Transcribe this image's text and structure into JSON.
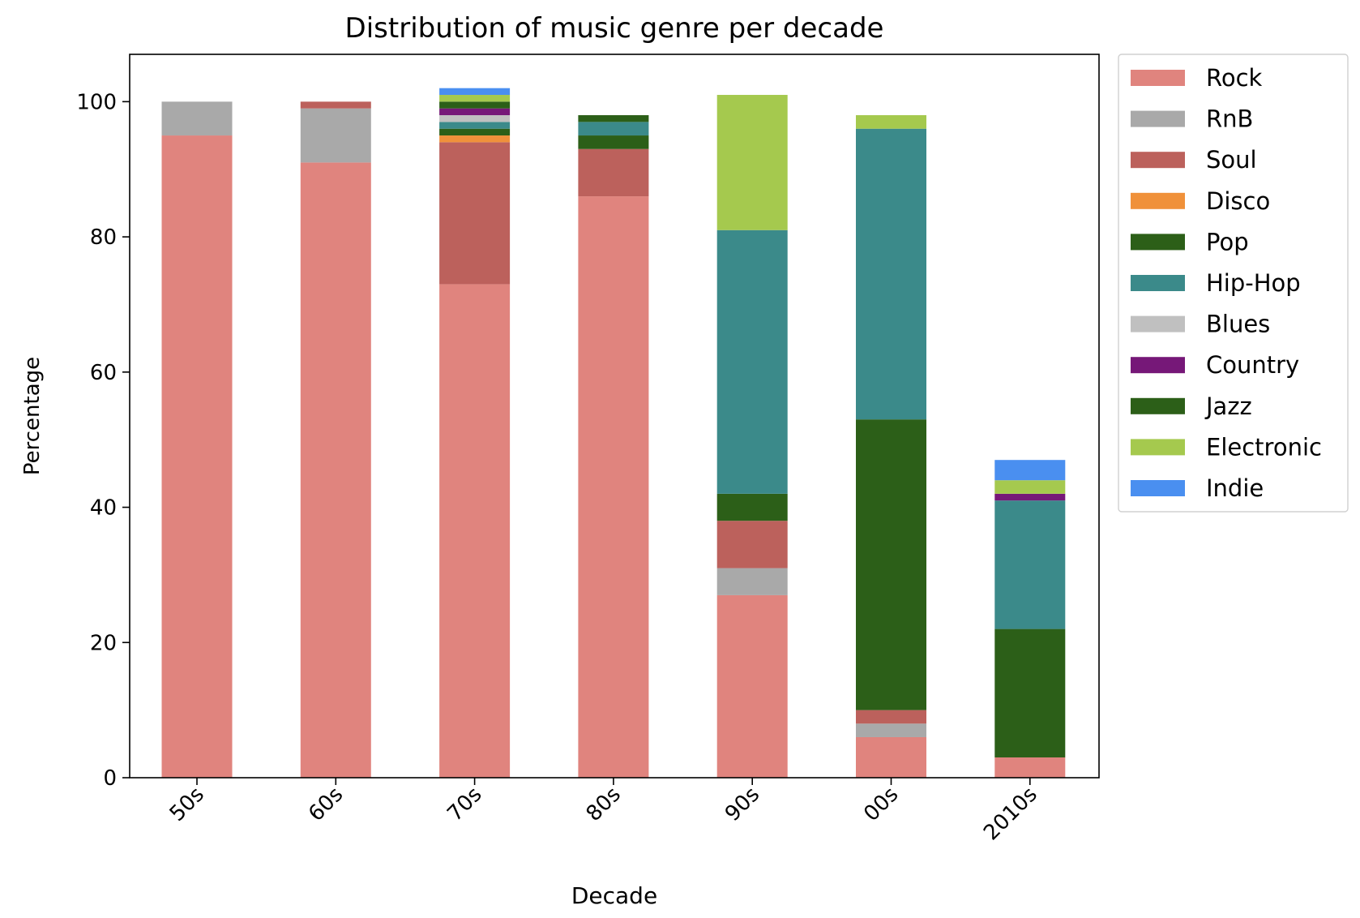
{
  "chart_data": {
    "type": "bar",
    "stacked": true,
    "title": "Distribution of music genre per decade",
    "xlabel": "Decade",
    "ylabel": "Percentage",
    "ylim": [
      0,
      107
    ],
    "yticks": [
      0,
      20,
      40,
      60,
      80,
      100
    ],
    "grid": false,
    "legend_position": "outside-right-top",
    "categories": [
      "50s",
      "60s",
      "70s",
      "80s",
      "90s",
      "00s",
      "2010s"
    ],
    "series": [
      {
        "name": "Rock",
        "color": "#e0847e",
        "values": [
          95,
          91,
          73,
          86,
          27,
          6,
          3
        ]
      },
      {
        "name": "RnB",
        "color": "#a9a9a9",
        "values": [
          5,
          8,
          0,
          0,
          4,
          2,
          0
        ]
      },
      {
        "name": "Soul",
        "color": "#bc615c",
        "values": [
          0,
          1,
          21,
          7,
          7,
          2,
          0
        ]
      },
      {
        "name": "Disco",
        "color": "#f0913a",
        "values": [
          0,
          0,
          1,
          0,
          0,
          0,
          0
        ]
      },
      {
        "name": "Pop",
        "color": "#2c5f18",
        "values": [
          0,
          0,
          1,
          2,
          4,
          43,
          19
        ]
      },
      {
        "name": "Hip-Hop",
        "color": "#3b8a8a",
        "values": [
          0,
          0,
          1,
          2,
          39,
          43,
          19
        ]
      },
      {
        "name": "Blues",
        "color": "#c0c0c0",
        "values": [
          0,
          0,
          1,
          0,
          0,
          0,
          0
        ]
      },
      {
        "name": "Country",
        "color": "#761878",
        "values": [
          0,
          0,
          1,
          0,
          0,
          0,
          1
        ]
      },
      {
        "name": "Jazz",
        "color": "#2c5f18",
        "values": [
          0,
          0,
          1,
          1,
          0,
          0,
          0
        ]
      },
      {
        "name": "Electronic",
        "color": "#a5c94e",
        "values": [
          0,
          0,
          1,
          0,
          20,
          2,
          2
        ]
      },
      {
        "name": "Indie",
        "color": "#4a8ff0",
        "values": [
          0,
          0,
          1,
          0,
          0,
          0,
          3
        ]
      }
    ]
  }
}
